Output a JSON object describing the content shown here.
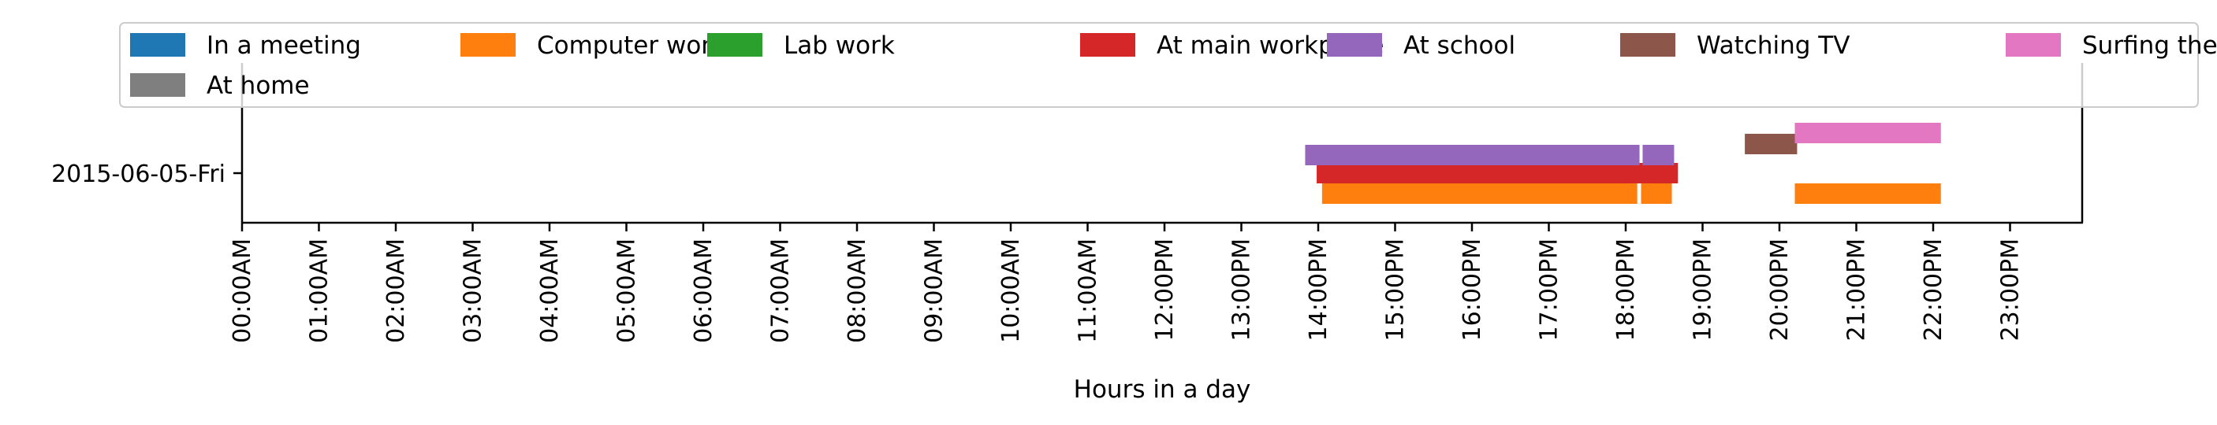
{
  "chart_data": {
    "type": "timeline",
    "title": "",
    "xlabel": "Hours in a day",
    "ylabel": "",
    "xlim": [
      0,
      24
    ],
    "row_label": "2015-06-05-Fri",
    "x_ticks": [
      "00:00AM",
      "01:00AM",
      "02:00AM",
      "03:00AM",
      "04:00AM",
      "05:00AM",
      "06:00AM",
      "07:00AM",
      "08:00AM",
      "09:00AM",
      "10:00AM",
      "11:00AM",
      "12:00PM",
      "13:00PM",
      "14:00PM",
      "15:00PM",
      "16:00PM",
      "17:00PM",
      "18:00PM",
      "19:00PM",
      "20:00PM",
      "21:00PM",
      "22:00PM",
      "23:00PM"
    ],
    "legend_position": "top",
    "grid": false,
    "series": [
      {
        "name": "In a meeting",
        "color": "#1f77b4",
        "lane": 5,
        "intervals": []
      },
      {
        "name": "Computer work",
        "color": "#ff7f0e",
        "lane": 0,
        "intervals": [
          [
            14.05,
            18.15
          ],
          [
            18.2,
            18.6
          ],
          [
            20.2,
            22.1
          ]
        ]
      },
      {
        "name": "Lab work",
        "color": "#2ca02c",
        "lane": 5,
        "intervals": []
      },
      {
        "name": "At main workplace",
        "color": "#d62728",
        "lane": 1,
        "intervals": [
          [
            13.98,
            18.68
          ]
        ]
      },
      {
        "name": "At school",
        "color": "#9467bd",
        "lane": 2,
        "intervals": [
          [
            13.83,
            18.18
          ],
          [
            18.22,
            18.63
          ]
        ]
      },
      {
        "name": "Watching TV",
        "color": "#8c564b",
        "lane": 3,
        "intervals": [
          [
            19.55,
            20.23
          ]
        ]
      },
      {
        "name": "Surfing the internet",
        "color": "#e377c2",
        "lane": 4,
        "intervals": [
          [
            20.2,
            22.1
          ]
        ]
      },
      {
        "name": "At home",
        "color": "#7f7f7f",
        "lane": 5,
        "intervals": []
      }
    ]
  }
}
